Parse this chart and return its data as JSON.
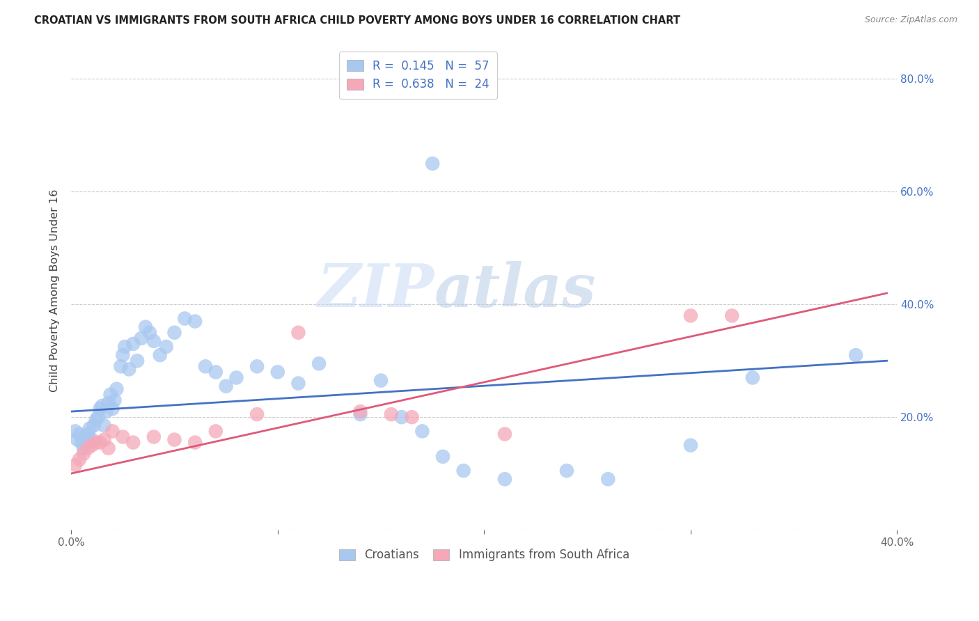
{
  "title": "CROATIAN VS IMMIGRANTS FROM SOUTH AFRICA CHILD POVERTY AMONG BOYS UNDER 16 CORRELATION CHART",
  "source": "Source: ZipAtlas.com",
  "ylabel": "Child Poverty Among Boys Under 16",
  "xlim": [
    0.0,
    0.4
  ],
  "ylim": [
    0.0,
    0.85
  ],
  "x_ticks": [
    0.0,
    0.1,
    0.2,
    0.3,
    0.4
  ],
  "x_tick_labels": [
    "0.0%",
    "",
    "",
    "",
    "40.0%"
  ],
  "y_ticks": [
    0.2,
    0.4,
    0.6,
    0.8
  ],
  "y_tick_labels": [
    "20.0%",
    "40.0%",
    "60.0%",
    "80.0%"
  ],
  "croatian_R": 0.145,
  "croatian_N": 57,
  "sa_R": 0.638,
  "sa_N": 24,
  "croatian_color": "#a8c8f0",
  "sa_color": "#f4a8b8",
  "croatian_line_color": "#4472c4",
  "sa_line_color": "#e05878",
  "legend_label_1": "Croatians",
  "legend_label_2": "Immigrants from South Africa",
  "watermark_zip": "ZIP",
  "watermark_atlas": "atlas",
  "cr_x": [
    0.002,
    0.003,
    0.004,
    0.005,
    0.006,
    0.007,
    0.008,
    0.009,
    0.01,
    0.011,
    0.012,
    0.013,
    0.014,
    0.015,
    0.016,
    0.017,
    0.018,
    0.019,
    0.02,
    0.021,
    0.022,
    0.024,
    0.025,
    0.026,
    0.028,
    0.03,
    0.032,
    0.034,
    0.036,
    0.038,
    0.04,
    0.043,
    0.046,
    0.05,
    0.055,
    0.06,
    0.065,
    0.07,
    0.075,
    0.08,
    0.09,
    0.1,
    0.11,
    0.12,
    0.14,
    0.15,
    0.16,
    0.17,
    0.175,
    0.18,
    0.19,
    0.21,
    0.24,
    0.26,
    0.3,
    0.33,
    0.38
  ],
  "cr_y": [
    0.175,
    0.16,
    0.17,
    0.155,
    0.145,
    0.165,
    0.17,
    0.18,
    0.16,
    0.185,
    0.195,
    0.2,
    0.215,
    0.22,
    0.185,
    0.21,
    0.225,
    0.24,
    0.215,
    0.23,
    0.25,
    0.29,
    0.31,
    0.325,
    0.285,
    0.33,
    0.3,
    0.34,
    0.36,
    0.35,
    0.335,
    0.31,
    0.325,
    0.35,
    0.375,
    0.37,
    0.29,
    0.28,
    0.255,
    0.27,
    0.29,
    0.28,
    0.26,
    0.295,
    0.205,
    0.265,
    0.2,
    0.175,
    0.65,
    0.13,
    0.105,
    0.09,
    0.105,
    0.09,
    0.15,
    0.27,
    0.31
  ],
  "sa_x": [
    0.002,
    0.004,
    0.006,
    0.008,
    0.01,
    0.012,
    0.014,
    0.016,
    0.018,
    0.02,
    0.025,
    0.03,
    0.04,
    0.05,
    0.06,
    0.07,
    0.09,
    0.11,
    0.14,
    0.155,
    0.165,
    0.21,
    0.3,
    0.32
  ],
  "sa_y": [
    0.115,
    0.125,
    0.135,
    0.145,
    0.15,
    0.155,
    0.155,
    0.16,
    0.145,
    0.175,
    0.165,
    0.155,
    0.165,
    0.16,
    0.155,
    0.175,
    0.205,
    0.35,
    0.21,
    0.205,
    0.2,
    0.17,
    0.38,
    0.38
  ]
}
